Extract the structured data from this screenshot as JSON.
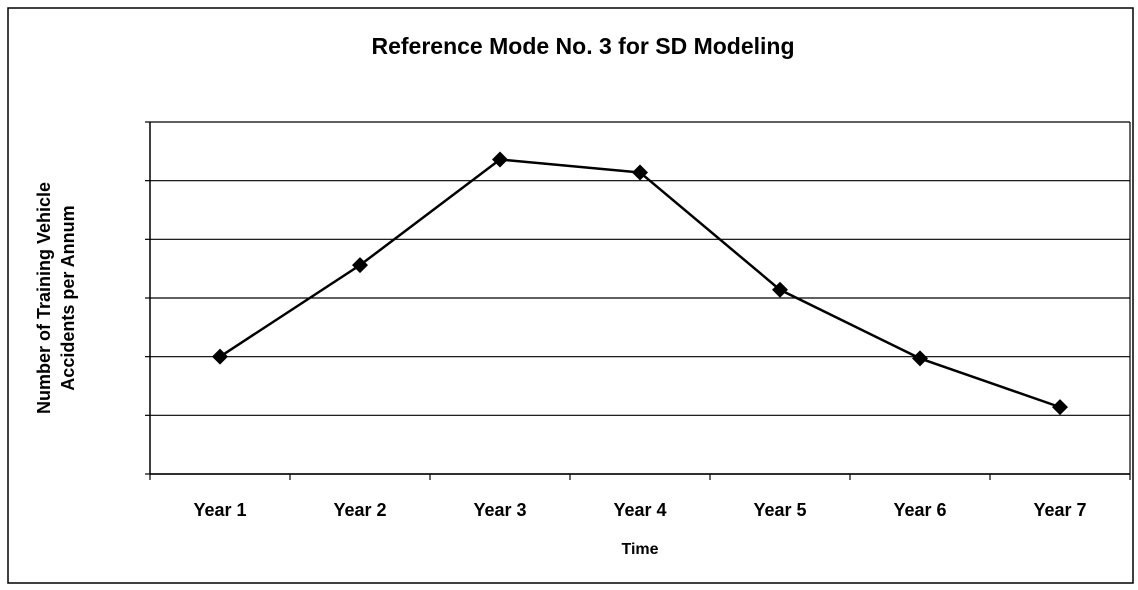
{
  "chart_data": {
    "type": "line",
    "title": "Reference Mode No. 3 for SD Modeling",
    "xlabel": "Time",
    "ylabel": [
      "Number of Training Vehicle",
      "Accidents per Annum"
    ],
    "categories": [
      "Year 1",
      "Year 2",
      "Year 3",
      "Year 4",
      "Year 5",
      "Year 6",
      "Year 7"
    ],
    "values": [
      2.0,
      3.56,
      5.36,
      5.14,
      3.14,
      1.97,
      1.14
    ],
    "color": "#000000",
    "ylim": [
      0,
      6
    ],
    "yticks": [
      0,
      1,
      2,
      3,
      4,
      5,
      6
    ],
    "grid": true
  }
}
